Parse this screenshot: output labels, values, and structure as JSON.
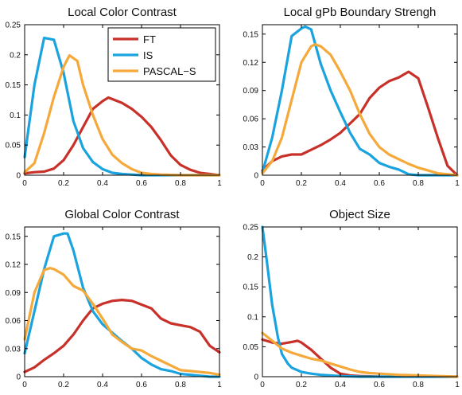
{
  "chart_data": [
    {
      "type": "line",
      "title": "Local Color Contrast",
      "xlim": [
        0,
        1
      ],
      "ylim": [
        0,
        0.25
      ],
      "xticks": [
        "0",
        "0.2",
        "0.4",
        "0.6",
        "0.8",
        "1"
      ],
      "yticks": [
        "0",
        "0.05",
        "0.1",
        "0.15",
        "0.2",
        "0.25"
      ],
      "legend": "top-right",
      "series": [
        {
          "name": "FT",
          "color": "#c8302a",
          "x": [
            0,
            0.05,
            0.1,
            0.15,
            0.2,
            0.25,
            0.3,
            0.35,
            0.4,
            0.43,
            0.5,
            0.55,
            0.6,
            0.65,
            0.7,
            0.75,
            0.8,
            0.85,
            0.9,
            0.95,
            1.0
          ],
          "y": [
            0.003,
            0.005,
            0.006,
            0.011,
            0.025,
            0.05,
            0.08,
            0.11,
            0.123,
            0.129,
            0.12,
            0.11,
            0.097,
            0.08,
            0.058,
            0.033,
            0.017,
            0.009,
            0.004,
            0.002,
            0.0
          ]
        },
        {
          "name": "IS",
          "color": "#1aa3de",
          "x": [
            0,
            0.05,
            0.1,
            0.15,
            0.2,
            0.25,
            0.3,
            0.35,
            0.4,
            0.45,
            0.5,
            0.55,
            0.6,
            0.65,
            0.7,
            0.8,
            0.9,
            1.0
          ],
          "y": [
            0.03,
            0.15,
            0.228,
            0.225,
            0.17,
            0.09,
            0.045,
            0.022,
            0.01,
            0.004,
            0.002,
            0.001,
            0.0,
            0.0,
            0.0,
            0.0,
            0.0,
            0.0
          ]
        },
        {
          "name": "PASCAL−S",
          "color": "#f5a93a",
          "x": [
            0,
            0.05,
            0.1,
            0.15,
            0.2,
            0.23,
            0.27,
            0.3,
            0.35,
            0.4,
            0.45,
            0.5,
            0.55,
            0.6,
            0.65,
            0.7,
            0.8,
            0.9,
            1.0
          ],
          "y": [
            0.005,
            0.02,
            0.07,
            0.13,
            0.18,
            0.199,
            0.19,
            0.15,
            0.1,
            0.06,
            0.034,
            0.02,
            0.01,
            0.004,
            0.002,
            0.001,
            0.0,
            0.0,
            0.0
          ]
        }
      ]
    },
    {
      "type": "line",
      "title": "Local gPb Boundary Strengh",
      "xlim": [
        0,
        1
      ],
      "ylim": [
        0,
        0.16
      ],
      "xticks": [
        "0",
        "0.2",
        "0.4",
        "0.6",
        "0.8",
        "1"
      ],
      "yticks": [
        "0",
        "0.03",
        "0.06",
        "0.09",
        "0.12",
        "0.15"
      ],
      "series": [
        {
          "name": "FT",
          "color": "#c8302a",
          "x": [
            0,
            0.05,
            0.1,
            0.15,
            0.2,
            0.25,
            0.3,
            0.35,
            0.4,
            0.45,
            0.5,
            0.55,
            0.6,
            0.65,
            0.7,
            0.75,
            0.8,
            0.85,
            0.9,
            0.95,
            1.0
          ],
          "y": [
            0.005,
            0.015,
            0.02,
            0.022,
            0.022,
            0.027,
            0.032,
            0.038,
            0.045,
            0.055,
            0.065,
            0.082,
            0.093,
            0.1,
            0.104,
            0.11,
            0.103,
            0.072,
            0.04,
            0.01,
            0.0
          ]
        },
        {
          "name": "IS",
          "color": "#1aa3de",
          "x": [
            0,
            0.05,
            0.1,
            0.15,
            0.2,
            0.22,
            0.25,
            0.3,
            0.35,
            0.4,
            0.45,
            0.5,
            0.55,
            0.6,
            0.65,
            0.7,
            0.75,
            0.8,
            0.9,
            1.0
          ],
          "y": [
            0.003,
            0.04,
            0.09,
            0.148,
            0.156,
            0.158,
            0.155,
            0.118,
            0.09,
            0.067,
            0.045,
            0.028,
            0.022,
            0.013,
            0.009,
            0.006,
            0.001,
            0.0,
            0.0,
            0.0
          ]
        },
        {
          "name": "PASCAL−S",
          "color": "#f5a93a",
          "x": [
            0,
            0.05,
            0.1,
            0.15,
            0.2,
            0.25,
            0.27,
            0.3,
            0.35,
            0.4,
            0.45,
            0.5,
            0.55,
            0.6,
            0.65,
            0.7,
            0.75,
            0.8,
            0.85,
            0.9,
            0.95,
            1.0
          ],
          "y": [
            0.002,
            0.015,
            0.04,
            0.08,
            0.12,
            0.137,
            0.139,
            0.137,
            0.128,
            0.11,
            0.09,
            0.065,
            0.044,
            0.03,
            0.022,
            0.017,
            0.012,
            0.008,
            0.005,
            0.002,
            0.001,
            0.0
          ]
        }
      ]
    },
    {
      "type": "line",
      "title": "Global Color Contrast",
      "xlim": [
        0,
        1
      ],
      "ylim": [
        0,
        0.16
      ],
      "xticks": [
        "0",
        "0.2",
        "0.4",
        "0.6",
        "0.8",
        "1"
      ],
      "yticks": [
        "0",
        "0.03",
        "0.06",
        "0.09",
        "0.12",
        "0.15"
      ],
      "series": [
        {
          "name": "FT",
          "color": "#c8302a",
          "x": [
            0,
            0.05,
            0.1,
            0.15,
            0.2,
            0.25,
            0.3,
            0.35,
            0.4,
            0.45,
            0.5,
            0.55,
            0.6,
            0.65,
            0.7,
            0.75,
            0.8,
            0.85,
            0.9,
            0.95,
            1.0
          ],
          "y": [
            0.005,
            0.01,
            0.018,
            0.025,
            0.033,
            0.045,
            0.06,
            0.073,
            0.078,
            0.081,
            0.082,
            0.081,
            0.077,
            0.073,
            0.062,
            0.057,
            0.055,
            0.053,
            0.048,
            0.033,
            0.026
          ]
        },
        {
          "name": "IS",
          "color": "#1aa3de",
          "x": [
            0,
            0.05,
            0.1,
            0.15,
            0.2,
            0.22,
            0.25,
            0.3,
            0.35,
            0.4,
            0.45,
            0.5,
            0.55,
            0.6,
            0.65,
            0.7,
            0.75,
            0.8,
            0.85,
            0.9,
            0.95,
            1.0
          ],
          "y": [
            0.025,
            0.07,
            0.115,
            0.15,
            0.153,
            0.153,
            0.135,
            0.095,
            0.07,
            0.056,
            0.047,
            0.038,
            0.03,
            0.02,
            0.013,
            0.008,
            0.006,
            0.003,
            0.002,
            0.001,
            0.0,
            0.0
          ]
        },
        {
          "name": "PASCAL−S",
          "color": "#f5a93a",
          "x": [
            0,
            0.05,
            0.1,
            0.13,
            0.15,
            0.2,
            0.25,
            0.3,
            0.35,
            0.4,
            0.45,
            0.5,
            0.55,
            0.6,
            0.65,
            0.7,
            0.75,
            0.8,
            0.85,
            0.9,
            0.95,
            1.0
          ],
          "y": [
            0.04,
            0.09,
            0.114,
            0.116,
            0.115,
            0.109,
            0.097,
            0.092,
            0.078,
            0.062,
            0.045,
            0.037,
            0.03,
            0.028,
            0.022,
            0.017,
            0.012,
            0.007,
            0.006,
            0.005,
            0.004,
            0.002
          ]
        }
      ]
    },
    {
      "type": "line",
      "title": "Object Size",
      "xlim": [
        0,
        1
      ],
      "ylim": [
        0,
        0.25
      ],
      "xticks": [
        "0",
        "0.2",
        "0.4",
        "0.6",
        "0.8",
        "1"
      ],
      "yticks": [
        "0",
        "0.05",
        "0.1",
        "0.15",
        "0.2",
        "0.25"
      ],
      "series": [
        {
          "name": "FT",
          "color": "#c8302a",
          "x": [
            0,
            0.05,
            0.1,
            0.15,
            0.18,
            0.2,
            0.25,
            0.3,
            0.35,
            0.4,
            0.45,
            0.5,
            0.6,
            0.7,
            0.8,
            0.9,
            1.0
          ],
          "y": [
            0.062,
            0.057,
            0.055,
            0.058,
            0.06,
            0.057,
            0.045,
            0.03,
            0.015,
            0.005,
            0.002,
            0.001,
            0.0,
            0.0,
            0.0,
            0.0,
            0.0
          ]
        },
        {
          "name": "IS",
          "color": "#1aa3de",
          "x": [
            0,
            0.02,
            0.05,
            0.08,
            0.1,
            0.13,
            0.15,
            0.2,
            0.25,
            0.3,
            0.35,
            0.4,
            0.5,
            0.6,
            0.7,
            0.8,
            0.9,
            1.0
          ],
          "y": [
            0.25,
            0.2,
            0.12,
            0.065,
            0.038,
            0.022,
            0.015,
            0.008,
            0.005,
            0.003,
            0.002,
            0.001,
            0.0,
            0.0,
            0.0,
            0.0,
            0.0,
            0.0
          ]
        },
        {
          "name": "PASCAL−S",
          "color": "#f5a93a",
          "x": [
            0,
            0.05,
            0.1,
            0.15,
            0.2,
            0.25,
            0.3,
            0.35,
            0.4,
            0.45,
            0.5,
            0.55,
            0.6,
            0.7,
            0.8,
            0.9,
            1.0
          ],
          "y": [
            0.073,
            0.06,
            0.047,
            0.04,
            0.035,
            0.03,
            0.027,
            0.022,
            0.017,
            0.012,
            0.008,
            0.006,
            0.005,
            0.003,
            0.002,
            0.001,
            0.0
          ]
        }
      ]
    }
  ]
}
